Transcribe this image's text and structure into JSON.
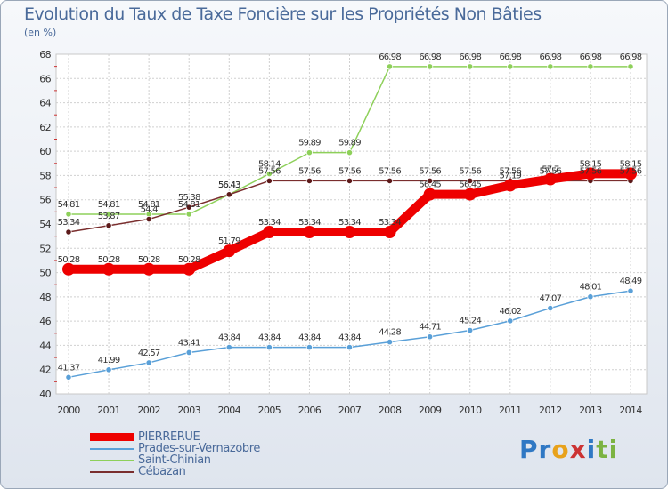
{
  "title": "Evolution du Taux de Taxe Foncière sur les Propriétés Non Bâties",
  "subtitle": "(en %)",
  "logo": {
    "letters": [
      "Pr",
      "o",
      "x",
      "i",
      "ti"
    ]
  },
  "chart_data": {
    "type": "line",
    "title": "Evolution du Taux de Taxe Foncière sur les Propriétés Non Bâties",
    "ylabel": "(en %)",
    "xlabel": "",
    "ylim": [
      40,
      68
    ],
    "yticks": [
      40,
      42,
      44,
      46,
      48,
      50,
      52,
      54,
      56,
      58,
      60,
      62,
      64,
      66,
      68
    ],
    "grid": true,
    "legend_position": "bottom-left",
    "x": [
      2000,
      2001,
      2002,
      2003,
      2004,
      2005,
      2006,
      2007,
      2008,
      2009,
      2010,
      2011,
      2012,
      2013,
      2014
    ],
    "series": [
      {
        "name": "Saint-Chinian",
        "color": "#8ed05a",
        "point_color": "#8ed05a",
        "values": [
          54.81,
          54.81,
          54.81,
          54.81,
          56.43,
          58.14,
          59.89,
          59.89,
          66.98,
          66.98,
          66.98,
          66.98,
          66.98,
          66.98,
          66.98
        ]
      },
      {
        "name": "Cébazan",
        "color": "#7a2e2e",
        "point_color": "#5c1a1a",
        "values": [
          53.34,
          53.87,
          54.4,
          55.38,
          56.43,
          57.56,
          57.56,
          57.56,
          57.56,
          57.56,
          57.56,
          57.56,
          57.56,
          57.56,
          57.56
        ]
      },
      {
        "name": "PIERRERUE",
        "color": "#ee0000",
        "point_color": "#ee0000",
        "values": [
          50.28,
          50.28,
          50.28,
          50.28,
          51.79,
          53.34,
          53.34,
          53.34,
          53.34,
          56.45,
          56.45,
          57.19,
          57.7,
          58.15,
          58.15
        ]
      },
      {
        "name": "Prades-sur-Vernazobre",
        "color": "#5aa0d8",
        "point_color": "#5aa0d8",
        "values": [
          41.37,
          41.99,
          42.57,
          43.41,
          43.84,
          43.84,
          43.84,
          43.84,
          44.28,
          44.71,
          45.24,
          46.02,
          47.07,
          48.01,
          48.49
        ]
      }
    ],
    "legend": [
      {
        "name": "PIERRERUE",
        "color": "#ee0000"
      },
      {
        "name": "Prades-sur-Vernazobre",
        "color": "#5aa0d8"
      },
      {
        "name": "Saint-Chinian",
        "color": "#8ed05a"
      },
      {
        "name": "Cébazan",
        "color": "#7a2e2e"
      }
    ]
  }
}
